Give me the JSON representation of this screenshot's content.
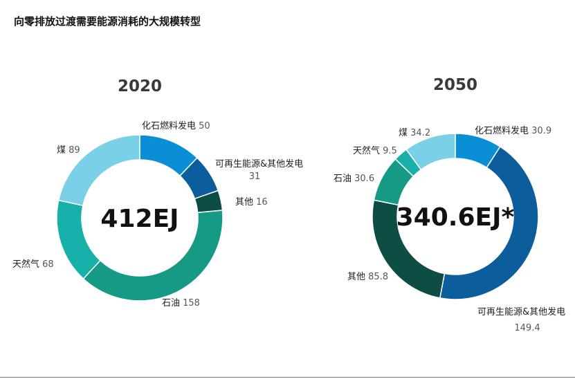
{
  "page": {
    "title": "向零排放过渡需要能源消耗的大规模转型"
  },
  "chart_data": [
    {
      "type": "pie",
      "year": "2020",
      "total_label": "412EJ",
      "slices": [
        {
          "name": "化石燃料发电",
          "value": 50,
          "value_text": "50",
          "color": "#0a8fd6"
        },
        {
          "name": "可再生能源&其他发电",
          "value": 31,
          "value_text": "31",
          "color": "#0b5d9b"
        },
        {
          "name": "其他",
          "value": 16,
          "value_text": "16",
          "color": "#0d4d44"
        },
        {
          "name": "石油",
          "value": 158,
          "value_text": "158",
          "color": "#169a85"
        },
        {
          "name": "天然气",
          "value": 68,
          "value_text": "68",
          "color": "#17b1aa"
        },
        {
          "name": "煤",
          "value": 89,
          "value_text": "89",
          "color": "#7ad0e6"
        }
      ]
    },
    {
      "type": "pie",
      "year": "2050",
      "total_label": "340.6EJ*",
      "slices": [
        {
          "name": "化石燃料发电",
          "value": 30.9,
          "value_text": "30.9",
          "color": "#0a8fd6"
        },
        {
          "name": "可再生能源&其他发电",
          "value": 149.4,
          "value_text": "149.4",
          "color": "#0b5d9b"
        },
        {
          "name": "其他",
          "value": 85.8,
          "value_text": "85.8",
          "color": "#0d4d44"
        },
        {
          "name": "石油",
          "value": 30.6,
          "value_text": "30.6",
          "color": "#169a85"
        },
        {
          "name": "天然气",
          "value": 9.5,
          "value_text": "9.5",
          "color": "#17b1aa"
        },
        {
          "name": "煤",
          "value": 34.2,
          "value_text": "34.2",
          "color": "#7ad0e6"
        }
      ]
    }
  ]
}
